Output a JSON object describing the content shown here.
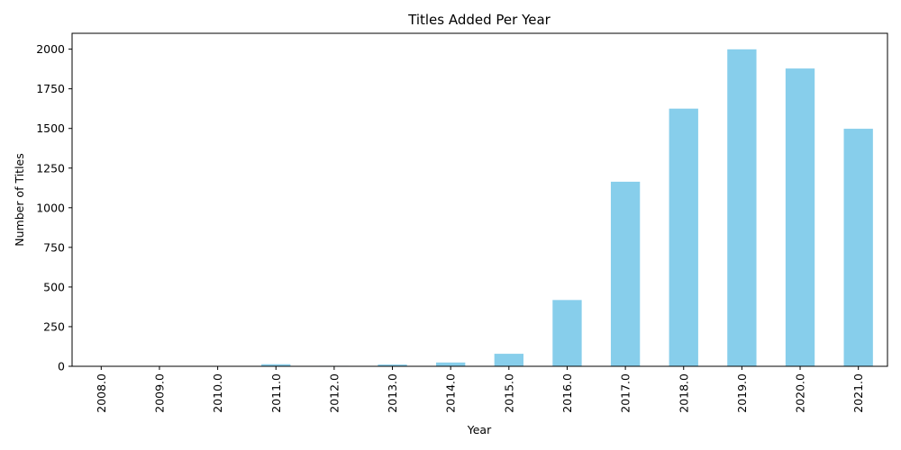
{
  "chart_data": {
    "type": "bar",
    "title": "Titles Added Per Year",
    "xlabel": "Year",
    "ylabel": "Number of Titles",
    "categories": [
      "2008.0",
      "2009.0",
      "2010.0",
      "2011.0",
      "2012.0",
      "2013.0",
      "2014.0",
      "2015.0",
      "2016.0",
      "2017.0",
      "2018.0",
      "2019.0",
      "2020.0",
      "2021.0"
    ],
    "values": [
      2,
      2,
      1,
      13,
      3,
      11,
      24,
      79,
      418,
      1164,
      1625,
      1999,
      1878,
      1498
    ],
    "ylim": [
      0,
      2100
    ],
    "yticks": [
      0,
      250,
      500,
      750,
      1000,
      1250,
      1500,
      1750,
      2000
    ],
    "bar_color": "#87CEEB",
    "grid": false,
    "legend": false
  }
}
